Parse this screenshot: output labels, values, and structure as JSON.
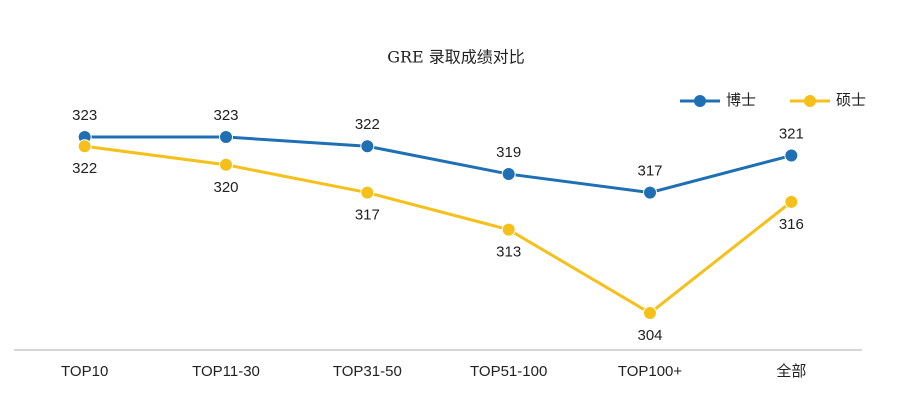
{
  "chart_data": {
    "type": "line",
    "title": "GRE 录取成绩对比",
    "categories": [
      "TOP10",
      "TOP11-30",
      "TOP31-50",
      "TOP51-100",
      "TOP100+",
      "全部"
    ],
    "series": [
      {
        "name": "博士",
        "color": "#1f6fb5",
        "values": [
          323,
          323,
          322,
          319,
          317,
          321
        ]
      },
      {
        "name": "硕士",
        "color": "#f5c01a",
        "values": [
          322,
          320,
          317,
          313,
          304,
          316
        ]
      }
    ],
    "legend": "top-right",
    "grid": false
  }
}
